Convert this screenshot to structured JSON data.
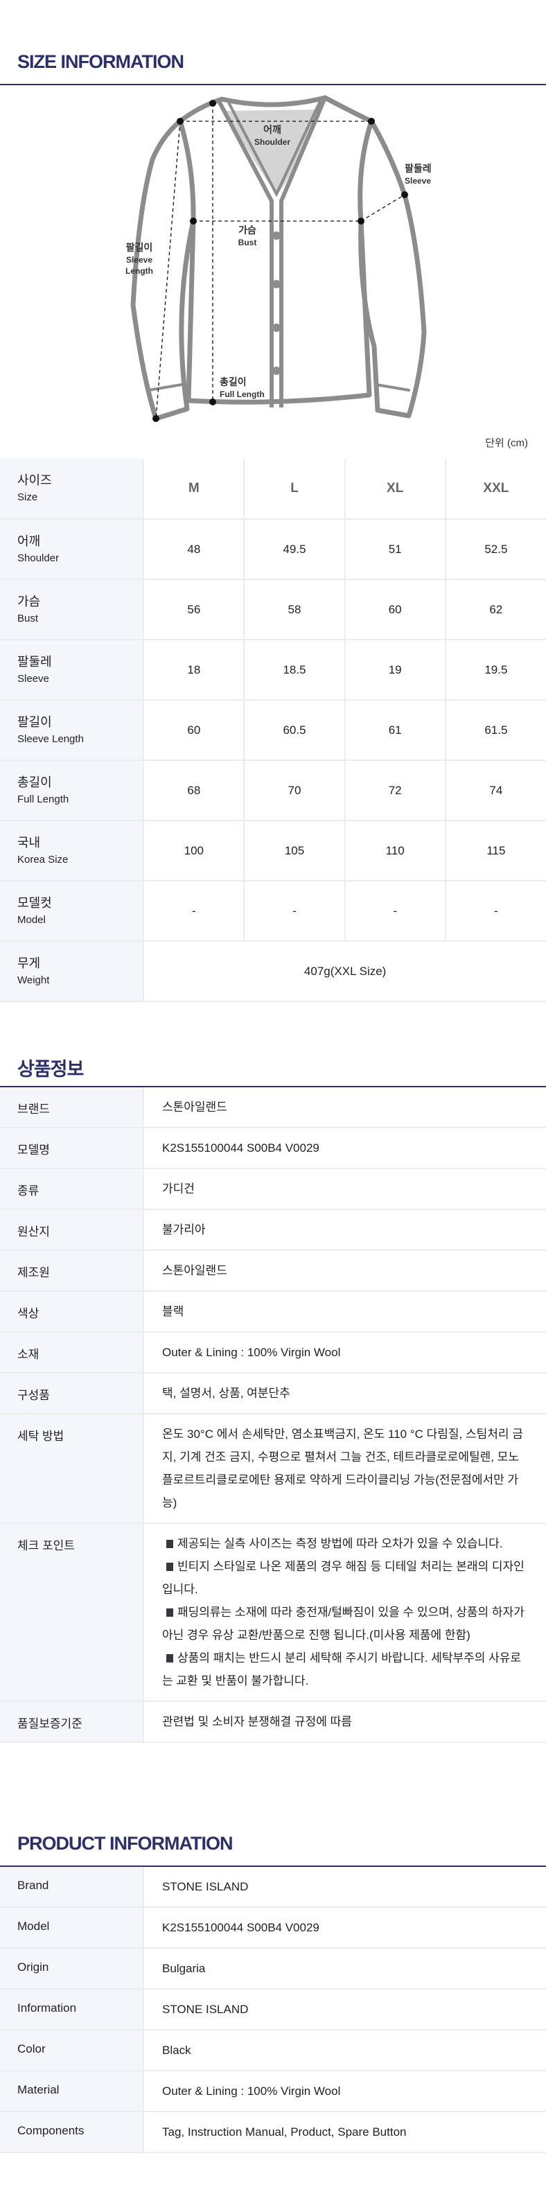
{
  "size_info": {
    "title": "SIZE INFORMATION",
    "diagram_labels": {
      "shoulder": {
        "ko": "어깨",
        "en": "Shoulder"
      },
      "sleeve": {
        "ko": "팔둘레",
        "en": "Sleeve"
      },
      "bust": {
        "ko": "가슴",
        "en": "Bust"
      },
      "sleeve_length": {
        "ko": "팔길이",
        "en1": "Sleeve",
        "en2": "Length"
      },
      "full_length": {
        "ko": "총길이",
        "en": "Full Length"
      }
    },
    "unit": "단위 (cm)",
    "header": {
      "ko": "사이즈",
      "en": "Size",
      "sizes": [
        "M",
        "L",
        "XL",
        "XXL"
      ]
    },
    "rows": [
      {
        "ko": "어깨",
        "en": "Shoulder",
        "values": [
          "48",
          "49.5",
          "51",
          "52.5"
        ]
      },
      {
        "ko": "가슴",
        "en": "Bust",
        "values": [
          "56",
          "58",
          "60",
          "62"
        ]
      },
      {
        "ko": "팔둘레",
        "en": "Sleeve",
        "values": [
          "18",
          "18.5",
          "19",
          "19.5"
        ]
      },
      {
        "ko": "팔길이",
        "en": "Sleeve Length",
        "values": [
          "60",
          "60.5",
          "61",
          "61.5"
        ]
      },
      {
        "ko": "총길이",
        "en": "Full Length",
        "values": [
          "68",
          "70",
          "72",
          "74"
        ]
      },
      {
        "ko": "국내",
        "en": "Korea Size",
        "values": [
          "100",
          "105",
          "110",
          "115"
        ]
      },
      {
        "ko": "모델컷",
        "en": "Model",
        "values": [
          "-",
          "-",
          "-",
          "-"
        ]
      }
    ],
    "weight": {
      "ko": "무게",
      "en": "Weight",
      "value": "407g(XXL Size)"
    }
  },
  "product_info_ko": {
    "title": "상품정보",
    "rows": [
      {
        "label": "브랜드",
        "value": "스톤아일랜드"
      },
      {
        "label": "모델명",
        "value": "K2S155100044 S00B4 V0029"
      },
      {
        "label": "종류",
        "value": "가디건"
      },
      {
        "label": "원산지",
        "value": "불가리아"
      },
      {
        "label": "제조원",
        "value": "스톤아일랜드"
      },
      {
        "label": "색상",
        "value": "블랙"
      },
      {
        "label": "소재",
        "value": "Outer & Lining : 100% Virgin Wool"
      },
      {
        "label": "구성품",
        "value": "택, 설명서, 상품, 여분단추"
      },
      {
        "label": "세탁 방법",
        "value": "온도 30°C 에서 손세탁만, 염소표백금지, 온도 110 °C 다림질, 스팀처리 금지, 기계 건조 금지, 수평으로 펼쳐서 그늘 건조, 테트라클로로에틸렌, 모노플로르트리클로로에탄 용제로 약하게 드라이클리닝 가능(전문점에서만 가능)"
      }
    ],
    "check_label": "체크 포인트",
    "check_points": [
      "제공되는 실측 사이즈는 측정 방법에 따라 오차가 있을 수 있습니다.",
      "빈티지 스타일로 나온 제품의 경우 해짐 등 디테일 처리는 본래의 디자인입니다.",
      "패딩의류는 소재에 따라 충전재/털빠짐이 있을 수 있으며, 상품의 하자가 아닌 경우 유상 교환/반품으로 진행 됩니다.(미사용 제품에 한함)",
      "상품의 패치는 반드시 분리 세탁해 주시기 바랍니다. 세탁부주의 사유로는 교환 및 반품이 불가합니다."
    ],
    "quality": {
      "label": "품질보증기준",
      "value": "관련법 및 소비자 분쟁해결 규정에 따름"
    }
  },
  "product_info_en": {
    "title": "PRODUCT INFORMATION",
    "rows": [
      {
        "label": "Brand",
        "value": "STONE ISLAND"
      },
      {
        "label": "Model",
        "value": "K2S155100044 S00B4 V0029"
      },
      {
        "label": "Origin",
        "value": "Bulgaria"
      },
      {
        "label": "Information",
        "value": "STONE ISLAND"
      },
      {
        "label": "Color",
        "value": "Black"
      },
      {
        "label": "Material",
        "value": "Outer & Lining : 100% Virgin Wool"
      },
      {
        "label": "Components",
        "value": "Tag, Instruction Manual, Product, Spare Button"
      }
    ]
  },
  "colors": {
    "accent": "#2d3068",
    "label_bg": "#f5f6fc",
    "outline": "#8c8c8c"
  }
}
